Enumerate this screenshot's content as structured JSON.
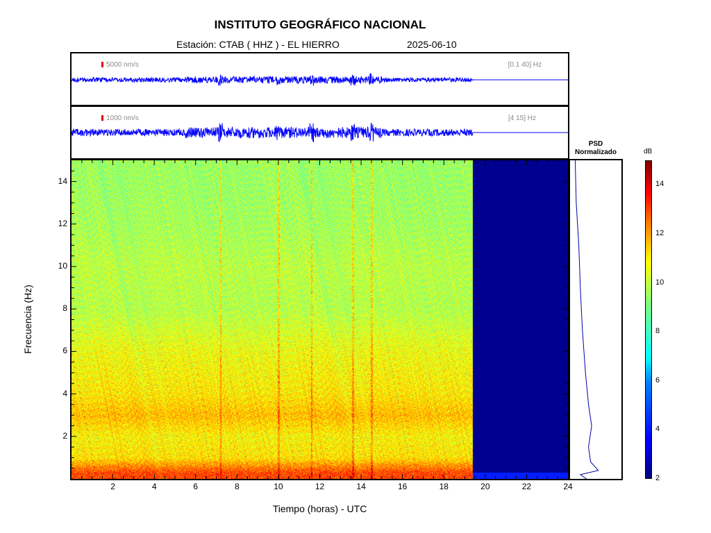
{
  "header": {
    "title": "INSTITUTO GEOGRÁFICO NACIONAL",
    "station": "Estación:  CTAB ( HHZ ) - EL HIERRO",
    "date": "2025-06-10"
  },
  "trace1": {
    "amplitude_label": "5000 nm/s",
    "band_label": "[0.1 40] Hz"
  },
  "trace2": {
    "amplitude_label": "1000 nm/s",
    "band_label": "[4 15] Hz"
  },
  "psd": {
    "title_line1": "PSD",
    "title_line2": "Normalizado"
  },
  "colorbar": {
    "unit": "dB",
    "min": 2,
    "max": 15,
    "ticks": [
      "2",
      "4",
      "6",
      "8",
      "10",
      "12",
      "14"
    ]
  },
  "chart_data": {
    "type": "heatmap",
    "xlabel": "Tiempo (horas) - UTC",
    "ylabel": "Frecuencia  (Hz)",
    "xlim": [
      0,
      24
    ],
    "ylim": [
      0,
      15
    ],
    "x_ticks": [
      "2",
      "4",
      "6",
      "8",
      "10",
      "12",
      "14",
      "16",
      "18",
      "20",
      "22",
      "24"
    ],
    "y_ticks": [
      "2",
      "4",
      "6",
      "8",
      "10",
      "12",
      "14"
    ],
    "data_end_hour": 19.4,
    "colorscale": "jet",
    "noise_level_db_by_freq": [
      [
        0.3,
        12.5
      ],
      [
        1.0,
        10.5
      ],
      [
        2.0,
        10.2
      ],
      [
        3.0,
        11.0
      ],
      [
        4.0,
        10.4
      ],
      [
        6.0,
        10.0
      ],
      [
        8.0,
        9.2
      ],
      [
        10.0,
        9.3
      ],
      [
        12.0,
        9.0
      ],
      [
        14.0,
        8.9
      ],
      [
        15.0,
        8.9
      ]
    ],
    "psd_normalized": [
      [
        0.0,
        0.32
      ],
      [
        0.2,
        0.2
      ],
      [
        0.4,
        0.55
      ],
      [
        0.8,
        0.4
      ],
      [
        1.5,
        0.36
      ],
      [
        2.5,
        0.42
      ],
      [
        3.5,
        0.36
      ],
      [
        5.0,
        0.3
      ],
      [
        7.0,
        0.24
      ],
      [
        9.0,
        0.2
      ],
      [
        11.0,
        0.17
      ],
      [
        13.0,
        0.12
      ],
      [
        15.0,
        0.1
      ]
    ],
    "transient_hours": [
      7.2,
      10.0,
      11.6,
      13.6,
      14.5
    ]
  }
}
